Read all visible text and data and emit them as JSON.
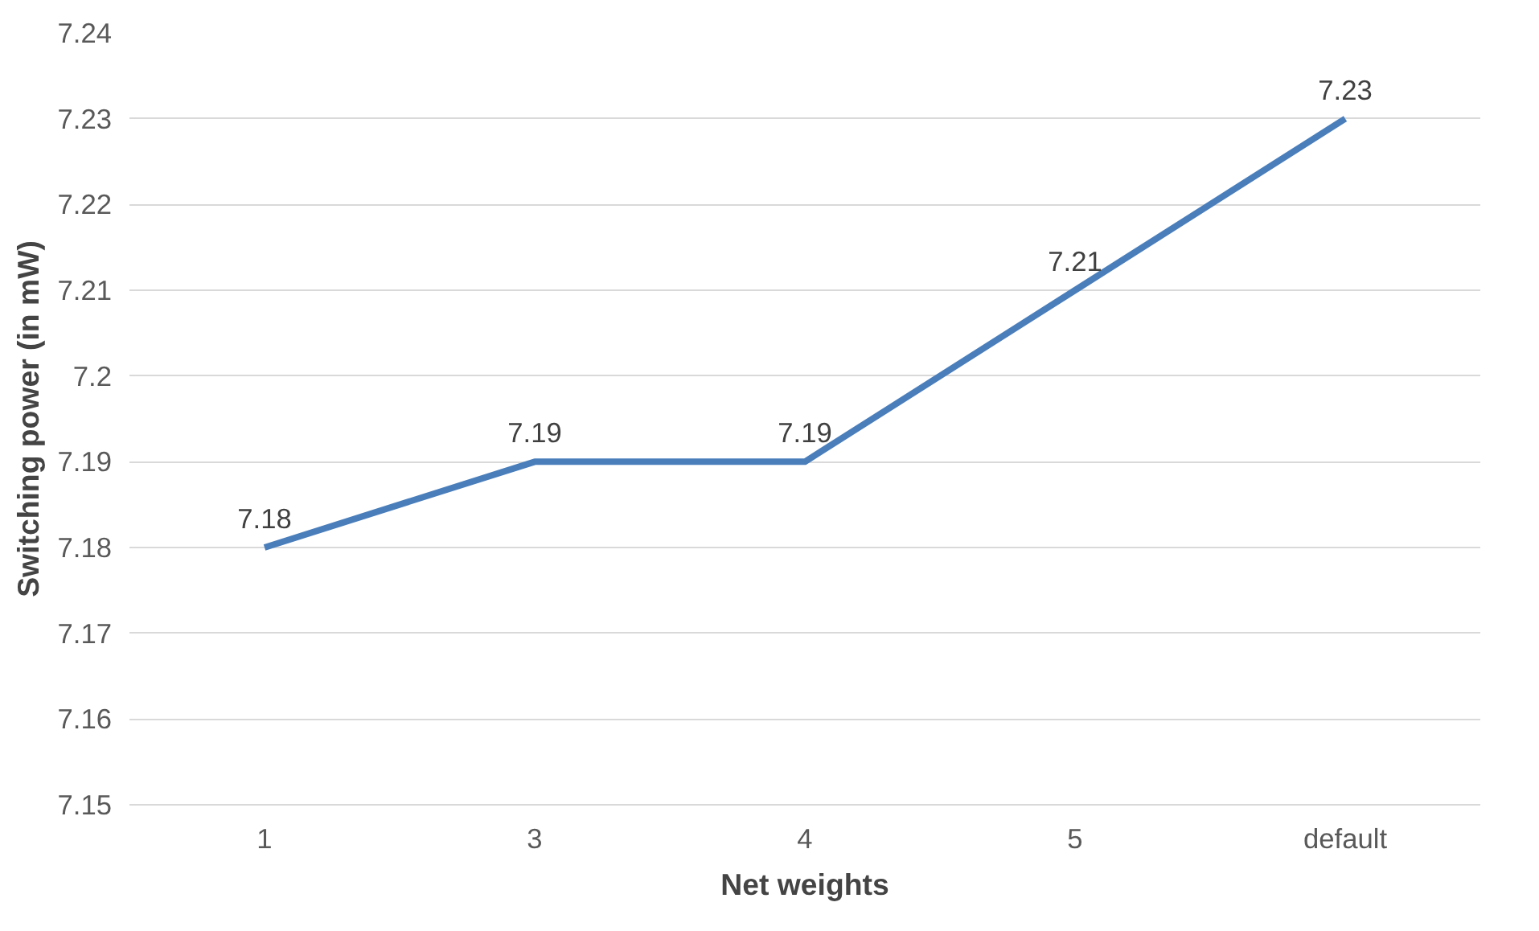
{
  "chart_data": {
    "type": "line",
    "xlabel": "Net weights",
    "ylabel": "Switching power (in mW)",
    "categories": [
      "1",
      "3",
      "4",
      "5",
      "default"
    ],
    "series": [
      {
        "color": "#4a7ebb",
        "values": [
          7.18,
          7.19,
          7.19,
          7.21,
          7.23
        ]
      }
    ],
    "ylim": [
      7.15,
      7.24
    ],
    "yticks": [
      7.15,
      7.16,
      7.17,
      7.18,
      7.19,
      7.2,
      7.21,
      7.22,
      7.23,
      7.24
    ],
    "grid": "y",
    "data_labels": true,
    "marker": "none",
    "line_style": "solid"
  }
}
